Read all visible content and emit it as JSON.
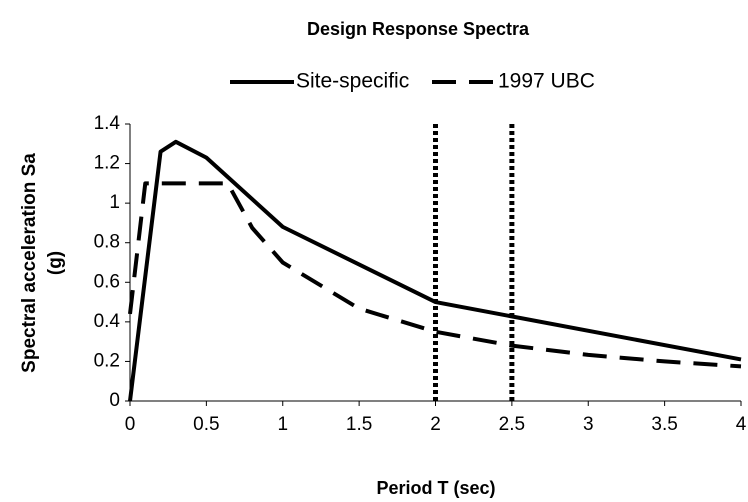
{
  "chart_data": {
    "type": "line",
    "title": "Design Response Spectra",
    "xlabel": "Period T (sec)",
    "ylabel": [
      "Spectral acceleration Sa",
      "(g)"
    ],
    "series": [
      {
        "name": "Site-specific",
        "color": "#000000",
        "style": "solid",
        "x": [
          0,
          0.2,
          0.3,
          0.5,
          1,
          2,
          4
        ],
        "values": [
          0,
          1.26,
          1.31,
          1.23,
          0.88,
          0.5,
          0.21
        ]
      },
      {
        "name": "1997 UBC",
        "color": "#000000",
        "style": "dashed",
        "x": [
          0,
          0.1,
          0.64,
          0.8,
          1,
          1.5,
          2,
          2.5,
          3,
          3.5,
          4
        ],
        "values": [
          0.44,
          1.1,
          1.1,
          0.875,
          0.7,
          0.467,
          0.35,
          0.28,
          0.233,
          0.2,
          0.175
        ]
      }
    ],
    "vlines": [
      2,
      2.5
    ],
    "xlim": [
      0,
      4
    ],
    "xticks": [
      0,
      0.5,
      1,
      1.5,
      2,
      2.5,
      3,
      3.5,
      4
    ],
    "ylim": [
      0,
      1.4
    ],
    "yticks": [
      0,
      0.2,
      0.4,
      0.6,
      0.8,
      1,
      1.2,
      1.4
    ],
    "grid": false,
    "legend": "top"
  }
}
